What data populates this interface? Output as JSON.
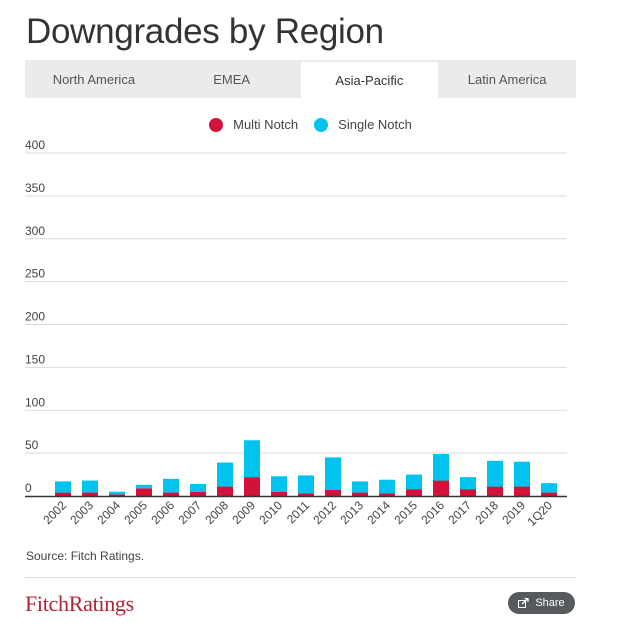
{
  "title": "Downgrades by Region",
  "tabs": [
    {
      "label": "North America"
    },
    {
      "label": "EMEA"
    },
    {
      "label": "Asia-Pacific"
    },
    {
      "label": "Latin America"
    }
  ],
  "active_tab": 2,
  "source": "Source: Fitch Ratings.",
  "logo": "FitchRatings",
  "share_label": "Share",
  "chart_data": {
    "type": "bar",
    "stacked": true,
    "categories": [
      "2002",
      "2003",
      "2004",
      "2005",
      "2006",
      "2007",
      "2008",
      "2009",
      "2010",
      "2011",
      "2012",
      "2013",
      "2014",
      "2015",
      "2016",
      "2017",
      "2018",
      "2019",
      "1Q20"
    ],
    "series": [
      {
        "name": "Multi Notch",
        "color": "#d3123b",
        "values": [
          4,
          4,
          2,
          9,
          4,
          5,
          11,
          22,
          5,
          3,
          7,
          4,
          3,
          8,
          18,
          8,
          11,
          11,
          4
        ]
      },
      {
        "name": "Single Notch",
        "color": "#00c3ef",
        "values": [
          13,
          14,
          3,
          4,
          16,
          9,
          28,
          43,
          18,
          21,
          38,
          13,
          16,
          17,
          31,
          14,
          30,
          29,
          11
        ]
      }
    ],
    "ylim": [
      0,
      400
    ],
    "yticks": [
      0,
      50,
      100,
      150,
      200,
      250,
      300,
      350,
      400
    ],
    "legend_position": "top-center",
    "grid": true
  }
}
